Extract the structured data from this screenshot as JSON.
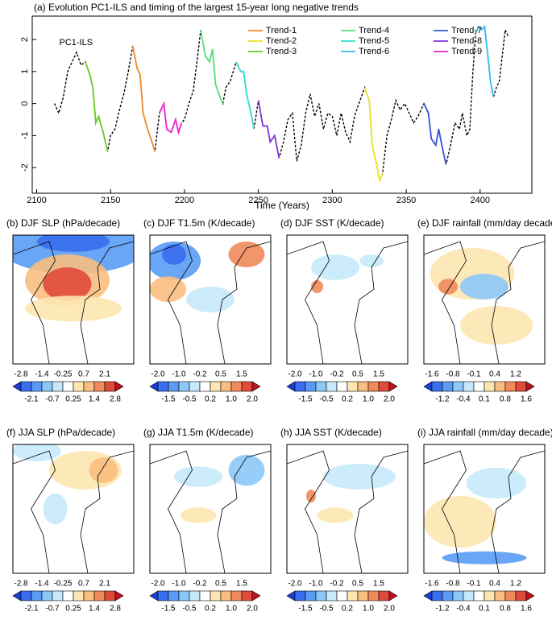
{
  "chart_data": {
    "type": "line",
    "title": "(a) Evolution PC1-ILS and timing of the largest 15-year long negative trends",
    "x_label": "Time (Years)",
    "annotation": "PC1-ILS",
    "xlim": [
      2097,
      2435
    ],
    "ylim": [
      -2.8,
      2.73
    ],
    "xticks": [
      2100,
      2150,
      2200,
      2250,
      2300,
      2350,
      2400
    ],
    "yticks": [
      -2,
      -1,
      0,
      1,
      2
    ],
    "main": {
      "color": "#000000",
      "x": [
        2112,
        2115,
        2118,
        2121,
        2124,
        2127,
        2130,
        2133,
        2136,
        2138,
        2140,
        2142,
        2145,
        2148,
        2150,
        2153,
        2156,
        2159,
        2162,
        2165,
        2168,
        2170,
        2172,
        2175,
        2178,
        2180,
        2183,
        2186,
        2188,
        2191,
        2194,
        2196,
        2198,
        2200,
        2203,
        2206,
        2209,
        2211,
        2214,
        2217,
        2219,
        2221,
        2224,
        2226,
        2228,
        2231,
        2235,
        2238,
        2240,
        2242,
        2245,
        2247,
        2250,
        2253,
        2256,
        2258,
        2261,
        2264,
        2267,
        2270,
        2273,
        2276,
        2279,
        2282,
        2285,
        2288,
        2291,
        2294,
        2297,
        2300,
        2303,
        2306,
        2309,
        2312,
        2315,
        2318,
        2322,
        2325,
        2327,
        2330,
        2332,
        2334,
        2337,
        2340,
        2343,
        2346,
        2349,
        2352,
        2355,
        2358,
        2362,
        2365,
        2367,
        2370,
        2372,
        2375,
        2377,
        2380,
        2383,
        2386,
        2388,
        2391,
        2393,
        2395,
        2397,
        2399,
        2401,
        2403,
        2405,
        2407,
        2409,
        2411,
        2413,
        2415,
        2417,
        2419
      ],
      "values": [
        0,
        -0.3,
        0.2,
        1.0,
        1.3,
        1.6,
        1.2,
        1.3,
        0.9,
        0.5,
        -0.6,
        -0.4,
        -0.9,
        -1.5,
        -1.0,
        -0.8,
        -0.2,
        0.3,
        1.0,
        1.8,
        1.1,
        0.9,
        -0.3,
        -0.8,
        -1.2,
        -1.5,
        -0.3,
        0.0,
        -0.8,
        -0.9,
        -0.5,
        -0.9,
        -0.6,
        -0.5,
        0.0,
        0.4,
        1.5,
        2.3,
        1.5,
        1.3,
        1.7,
        0.6,
        0.2,
        0.0,
        0.5,
        0.7,
        1.3,
        1.0,
        1.0,
        0.3,
        -0.3,
        -0.8,
        0.1,
        -0.7,
        -0.7,
        -1.2,
        -1.0,
        -1.7,
        -1.2,
        -0.5,
        -0.3,
        -1.8,
        -1.3,
        -0.3,
        0.3,
        -0.4,
        0.0,
        -0.8,
        -0.3,
        -0.4,
        -1.0,
        -0.3,
        -0.9,
        -1.2,
        -0.4,
        0.0,
        0.5,
        0.1,
        -1.3,
        -1.9,
        -2.4,
        -2.2,
        -1.0,
        -0.5,
        0.1,
        -0.2,
        0.0,
        -0.3,
        -0.6,
        -0.4,
        0.0,
        -0.3,
        -1.1,
        -1.3,
        -0.8,
        -1.5,
        -1.9,
        -1.3,
        -0.6,
        -0.8,
        -0.3,
        -1.0,
        -0.8,
        0.9,
        2.2,
        2.4,
        2.3,
        2.4,
        1.6,
        0.7,
        0.2,
        0.5,
        0.7,
        1.5,
        2.3,
        2.1
      ]
    },
    "series": [
      {
        "name": "Trend-1",
        "color": "#f28c28",
        "x": [
          2165,
          2168,
          2170,
          2172,
          2175,
          2178,
          2180
        ],
        "values": [
          1.8,
          1.1,
          0.9,
          -0.3,
          -0.8,
          -1.2,
          -1.5
        ]
      },
      {
        "name": "Trend-2",
        "color": "#e6e620",
        "x": [
          2322,
          2325,
          2327,
          2330,
          2332,
          2334
        ],
        "values": [
          0.5,
          0.1,
          -1.3,
          -1.9,
          -2.4,
          -2.2
        ]
      },
      {
        "name": "Trend-3",
        "color": "#66cc22",
        "x": [
          2133,
          2136,
          2138,
          2140,
          2142,
          2145,
          2148
        ],
        "values": [
          1.3,
          0.9,
          0.5,
          -0.6,
          -0.4,
          -0.9,
          -1.5
        ]
      },
      {
        "name": "Trend-4",
        "color": "#55e07a",
        "x": [
          2211,
          2214,
          2217,
          2219,
          2221,
          2224,
          2226
        ],
        "values": [
          2.3,
          1.5,
          1.3,
          1.7,
          0.6,
          0.2,
          0.0
        ]
      },
      {
        "name": "Trend-5",
        "color": "#33ddcc",
        "x": [
          2235,
          2238,
          2240,
          2242,
          2245,
          2247
        ],
        "values": [
          1.3,
          1.0,
          1.0,
          0.3,
          -0.3,
          -0.8
        ]
      },
      {
        "name": "Trend-6",
        "color": "#33bbee",
        "x": [
          2397,
          2399,
          2401,
          2403,
          2405,
          2407,
          2409
        ],
        "values": [
          2.2,
          2.4,
          2.3,
          2.4,
          1.6,
          0.7,
          0.2
        ]
      },
      {
        "name": "Trend-7",
        "color": "#3355dd",
        "x": [
          2362,
          2365,
          2367,
          2370,
          2372,
          2375,
          2377
        ],
        "values": [
          0.0,
          -0.3,
          -1.1,
          -1.3,
          -0.8,
          -1.5,
          -1.9
        ]
      },
      {
        "name": "Trend-8",
        "color": "#8833dd",
        "x": [
          2250,
          2253,
          2256,
          2258,
          2261,
          2264
        ],
        "values": [
          0.1,
          -0.7,
          -0.7,
          -1.2,
          -1.0,
          -1.7
        ]
      },
      {
        "name": "Trend-9",
        "color": "#ee22cc",
        "x": [
          2183,
          2186,
          2188,
          2191,
          2194,
          2196,
          2198
        ],
        "values": [
          -0.3,
          0.0,
          -0.8,
          -0.9,
          -0.5,
          -0.9,
          -0.6
        ]
      }
    ]
  },
  "colorbar_colors": [
    "#1a3fd6",
    "#3a6ef0",
    "#5a9cf5",
    "#8cc8f8",
    "#c6eafb",
    "#ffffff",
    "#fde6b0",
    "#f9bf80",
    "#f08a5a",
    "#e04a3a",
    "#c01020"
  ],
  "maps": [
    {
      "title": "(b) DJF SLP (hPa/decade)",
      "levels": [
        "-2.8",
        "-2.1",
        "-1.4",
        "-0.7",
        "-0.25",
        "0.25",
        "0.7",
        "1.4",
        "2.1",
        "2.8"
      ]
    },
    {
      "title": "(c) DJF T1.5m (K/decade)",
      "levels": [
        "-2.0",
        "-1.5",
        "-1.0",
        "-0.5",
        "-0.2",
        "0.2",
        "0.5",
        "1.0",
        "1.5",
        "2.0"
      ]
    },
    {
      "title": "(d) DJF SST (K/decade)",
      "levels": [
        "-2.0",
        "-1.5",
        "-1.0",
        "-0.5",
        "-0.2",
        "0.2",
        "0.5",
        "1.0",
        "1.5",
        "2.0"
      ]
    },
    {
      "title": "(e) DJF rainfall (mm/day decade)",
      "levels": [
        "-1.6",
        "-1.2",
        "-0.8",
        "-0.4",
        "-0.1",
        "0.1",
        "0.4",
        "0.8",
        "1.2",
        "1.6"
      ]
    },
    {
      "title": "(f) JJA SLP (hPa/decade)",
      "levels": [
        "-2.8",
        "-2.1",
        "-1.4",
        "-0.7",
        "-0.25",
        "0.25",
        "0.7",
        "1.4",
        "2.1",
        "2.8"
      ]
    },
    {
      "title": "(g) JJA T1.5m (K/decade)",
      "levels": [
        "-2.0",
        "-1.5",
        "-1.0",
        "-0.5",
        "-0.2",
        "0.2",
        "0.5",
        "1.0",
        "1.5",
        "2.0"
      ]
    },
    {
      "title": "(h) JJA SST (K/decade)",
      "levels": [
        "-2.0",
        "-1.5",
        "-1.0",
        "-0.5",
        "-0.2",
        "0.2",
        "0.5",
        "1.0",
        "1.5",
        "2.0"
      ]
    },
    {
      "title": "(i) JJA rainfall (mm/day decade)",
      "levels": [
        "-1.6",
        "-1.2",
        "-0.8",
        "-0.4",
        "-0.1",
        "0.1",
        "0.4",
        "0.8",
        "1.2",
        "1.6"
      ]
    }
  ]
}
